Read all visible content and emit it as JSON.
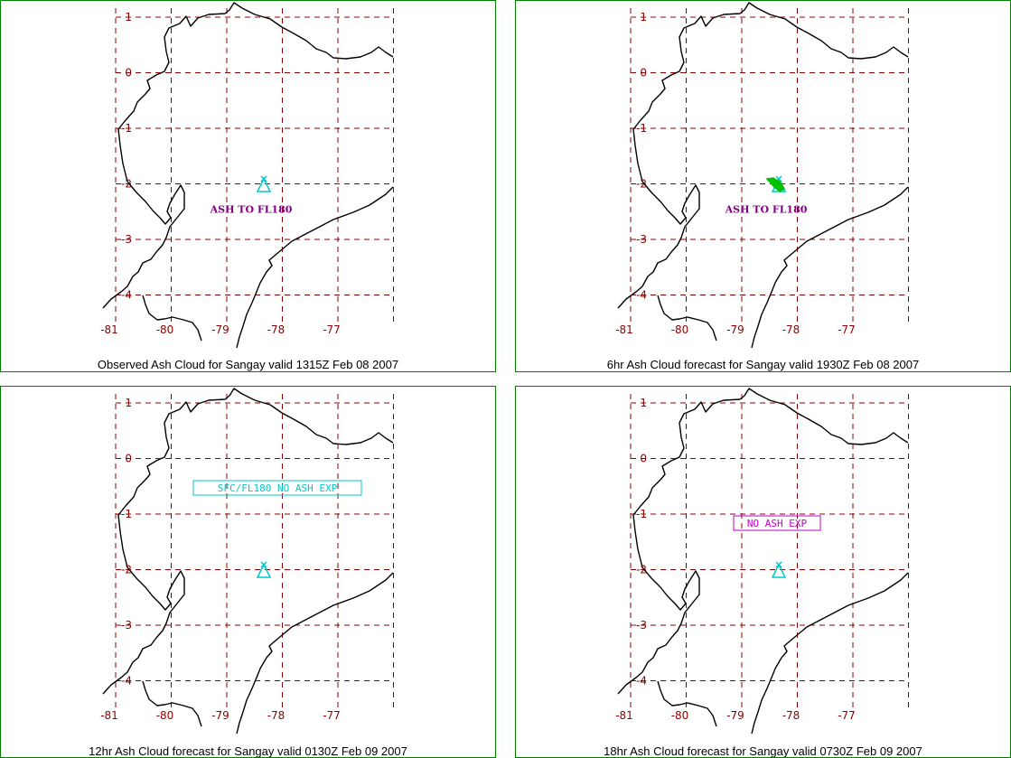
{
  "panels": [
    {
      "caption": "Observed Ash Cloud for Sangay valid 1315Z Feb 08 2007",
      "annotation": {
        "text": "ASH TO FL180",
        "style": "bold",
        "color": "#800080"
      },
      "volcano_color": "#00c8c8",
      "plume_color": ""
    },
    {
      "caption": "6hr Ash Cloud forecast for Sangay valid 1930Z Feb 08 2007",
      "annotation": {
        "text": "ASH TO FL180",
        "style": "bold",
        "color": "#800080"
      },
      "volcano_color": "#00c8c8",
      "plume_color": "#00c000"
    },
    {
      "caption": "12hr Ash Cloud forecast for Sangay valid 0130Z Feb 09 2007",
      "annotation": {
        "text": "SFC/FL180 NO ASH EXP",
        "style": "boxed",
        "color": "#00c8c8"
      },
      "volcano_color": "#00c8c8",
      "plume_color": ""
    },
    {
      "caption": "18hr Ash Cloud forecast for Sangay valid 0730Z Feb 09 2007",
      "annotation": {
        "text": "NO ASH EXP",
        "style": "boxed",
        "color": "#c000c0"
      },
      "volcano_color": "#00c8c8",
      "plume_color": ""
    }
  ],
  "lat_labels": [
    "1",
    "0",
    "-1",
    "-2",
    "-3",
    "-4"
  ],
  "lon_labels": [
    "-81",
    "-80",
    "-79",
    "-78",
    "-77"
  ],
  "grid_color": "#8b0000",
  "border_color": "#008000",
  "volcano": {
    "name": "Sangay",
    "lon": -78.34,
    "lat": -2.0
  }
}
